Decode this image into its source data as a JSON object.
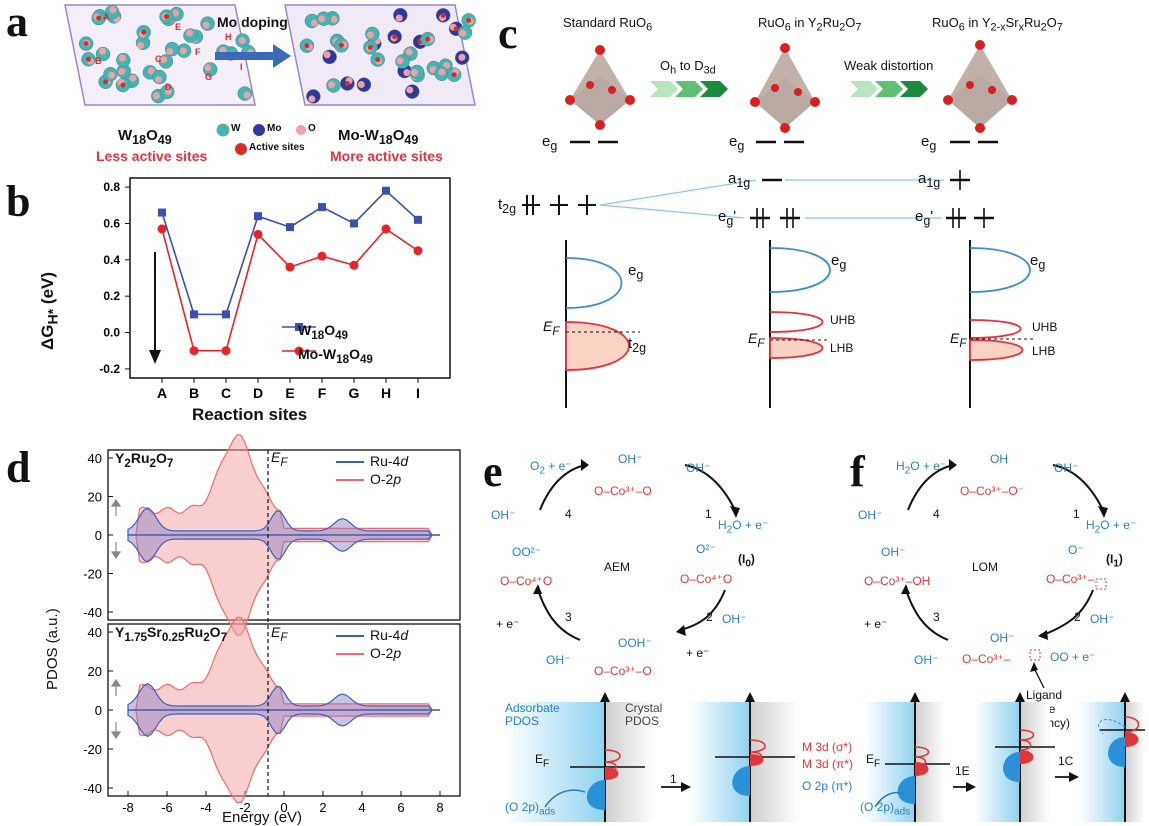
{
  "panels": {
    "a": {
      "letter": "a",
      "arrow_label": "Mo doping",
      "left_name": "W18O49",
      "left_caption": "Less active sites",
      "right_name": "Mo-W18O49",
      "right_caption": "More active sites",
      "legend": {
        "w": "W",
        "mo": "Mo",
        "o": "O",
        "active": "Active sites"
      },
      "site_letters": [
        "A",
        "B",
        "C",
        "D",
        "E",
        "F",
        "G",
        "H",
        "I"
      ],
      "colors": {
        "w": "#3fb7b4",
        "mo": "#2d3a9c",
        "o": "#f0a0a6",
        "active": "#d92b2b",
        "caption": "#e0353b"
      }
    },
    "b": {
      "letter": "b",
      "chart_data": {
        "type": "line",
        "categories": [
          "A",
          "B",
          "C",
          "D",
          "E",
          "F",
          "G",
          "H",
          "I"
        ],
        "series": [
          {
            "name": "W18O49",
            "values": [
              0.66,
              0.1,
              0.1,
              0.64,
              0.58,
              0.69,
              0.6,
              0.78,
              0.62
            ],
            "color": "#3a4fb0",
            "marker": "square"
          },
          {
            "name": "Mo-W18O49",
            "values": [
              0.57,
              -0.1,
              -0.1,
              0.54,
              0.36,
              0.42,
              0.37,
              0.57,
              0.45
            ],
            "color": "#e8232b",
            "marker": "circle"
          }
        ],
        "xlabel": "Reaction sites",
        "ylabel": "ΔGH* (eV)",
        "ylim": [
          -0.25,
          0.85
        ],
        "yticks": [
          "0.8",
          "0.6",
          "0.4",
          "0.2",
          "0.0",
          "-0.2"
        ],
        "legend_placement": "center-right",
        "grid": false
      }
    },
    "c": {
      "letter": "c",
      "titles": [
        "Standard RuO6",
        "RuO6 in Y2Ru2O7",
        "RuO6 in Y2-xSrxRu2O7"
      ],
      "arrow1": "Oh to D3d",
      "arrow2": "Weak distortion",
      "eg": "eg",
      "t2g": "t2g",
      "a1g": "a1g",
      "egp": "eg'",
      "ef": "EF",
      "uhb": "UHB",
      "lhb": "LHB"
    },
    "d": {
      "letter": "d",
      "ylabel": "PDOS (a.u.)",
      "xlabel": "Energy (eV)",
      "ef": "EF",
      "top_title": "Y2Ru2O7",
      "bottom_title": "Y1.75Sr0.25Ru2O7",
      "legend": [
        "Ru-4d",
        "O-2p"
      ],
      "yticks": [
        "40",
        "20",
        "0",
        "-20",
        "-40"
      ],
      "xticks": [
        "-8",
        "-6",
        "-4",
        "-2",
        "0",
        "2",
        "4",
        "6",
        "8"
      ],
      "colors": {
        "ru": "#3a63b8",
        "o": "#ef6b6b"
      }
    },
    "e": {
      "letter": "e",
      "center": "AEM",
      "steps": [
        "1",
        "2",
        "3",
        "4"
      ],
      "i0": "(I0)",
      "species": {
        "top_oh": "OH⁻",
        "top": "O–Co³⁺–O",
        "right_o": "O²⁻",
        "right": "O–Co⁴⁺O",
        "bottom_ooh": "OOH⁻",
        "bottom": "O–Co³⁺–O",
        "left_oo": "OO²⁻",
        "left": "O–Co⁴⁺O"
      },
      "labels": {
        "h2o": "H2O + e⁻",
        "o2": "O2 + e⁻",
        "oh": "OH⁻",
        "plus_e": "+ e⁻"
      },
      "pdos": {
        "adsorbate": "Adsorbate PDOS",
        "crystal": "Crystal PDOS",
        "ef": "EF",
        "o2p_ads": "(O 2p)ads",
        "m3d_s": "M 3d (σ*)",
        "m3d_p": "M 3d (π*)",
        "o2p": "O 2p (π*)",
        "step": "1"
      }
    },
    "f": {
      "letter": "f",
      "center": "LOM",
      "steps": [
        "1",
        "2",
        "3",
        "4"
      ],
      "i1": "(I1)",
      "species": {
        "top_oh": "OH",
        "top": "O–Co³⁺–O⁻",
        "right_o": "O⁻",
        "right": "O–Co³⁺–",
        "bottom_oh": "OH⁻",
        "bottom": "O–Co³⁺–",
        "left_oh": "OH⁻",
        "left": "O–Co³⁺–OH"
      },
      "labels": {
        "h2o": "H2O + e⁻",
        "oh": "OH⁻",
        "plus_e": "+ e⁻",
        "oo": "OO + e⁻",
        "ligand": "Ligand hole (vacancy)"
      },
      "pdos": {
        "ef": "EF",
        "o2p_ads": "(O 2p)ads",
        "step1": "1E",
        "step2": "1C"
      }
    }
  }
}
